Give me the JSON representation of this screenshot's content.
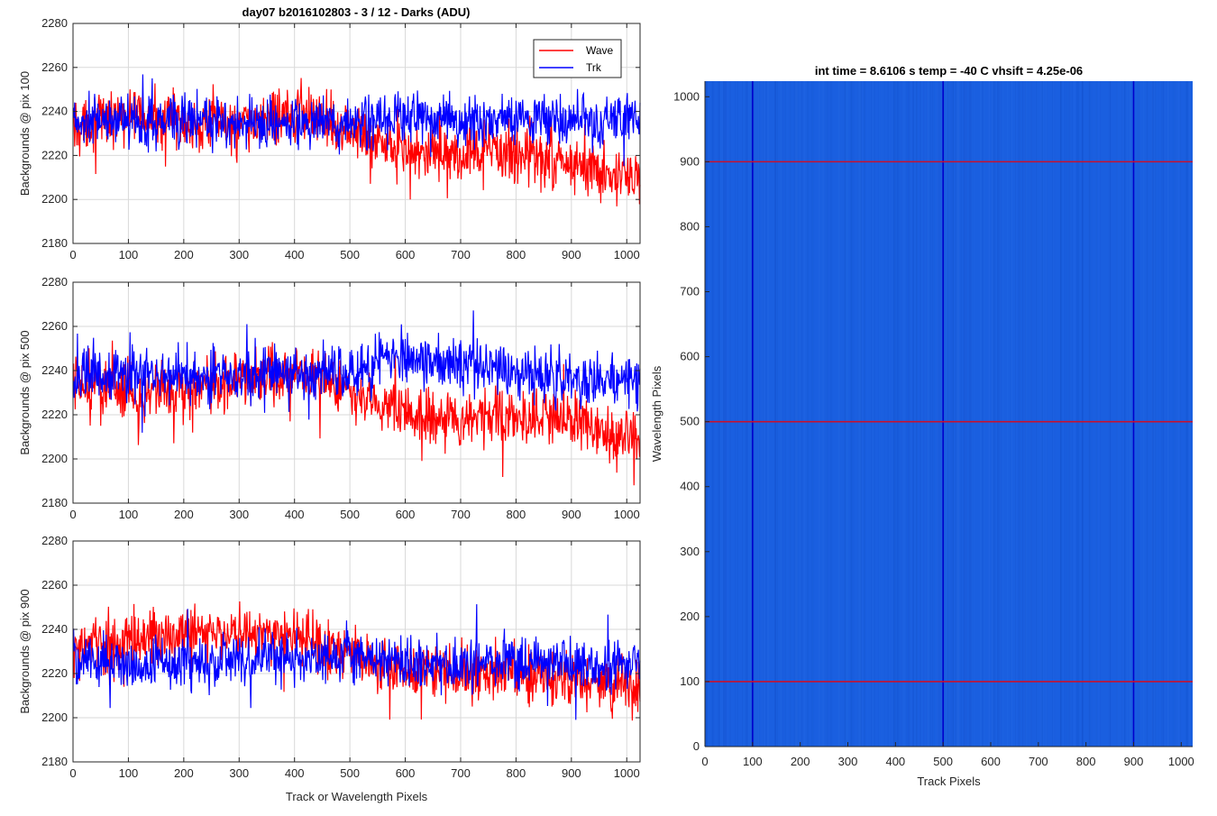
{
  "figure_title": "day07 b2016102803 - 3 / 12 - Darks (ADU)",
  "legend": {
    "placement": "top-right",
    "entries": [
      {
        "label": "Wave",
        "color": "#ff0000"
      },
      {
        "label": "Trk",
        "color": "#0000ff"
      }
    ]
  },
  "colors": {
    "wave": "#ff0000",
    "trk": "#0000ff",
    "heatmap_bg": "#1a5fe0",
    "marker_red": "#c8102e",
    "marker_blue": "#0000cc",
    "grid": "#d9d9d9"
  },
  "chart_data": [
    {
      "type": "line",
      "ylabel": "Backgrounds @ pix 100",
      "xlabel": "",
      "xlim": [
        0,
        1024
      ],
      "ylim": [
        2180,
        2280
      ],
      "xticks": [
        0,
        100,
        200,
        300,
        400,
        500,
        600,
        700,
        800,
        900,
        1000
      ],
      "yticks": [
        2180,
        2200,
        2220,
        2240,
        2260,
        2280
      ],
      "grid": true,
      "series": [
        {
          "name": "Wave",
          "color": "#ff0000",
          "x": [
            0,
            64,
            128,
            192,
            256,
            320,
            384,
            448,
            512,
            576,
            640,
            704,
            768,
            832,
            896,
            960,
            1024
          ],
          "y": [
            2233,
            2237,
            2238,
            2236,
            2235,
            2233,
            2240,
            2238,
            2230,
            2224,
            2220,
            2219,
            2222,
            2220,
            2217,
            2212,
            2207
          ]
        },
        {
          "name": "Trk",
          "color": "#0000ff",
          "x": [
            0,
            64,
            128,
            192,
            256,
            320,
            384,
            448,
            512,
            576,
            640,
            704,
            768,
            832,
            896,
            960,
            1024
          ],
          "y": [
            2234,
            2236,
            2235,
            2236,
            2235,
            2234,
            2235,
            2236,
            2234,
            2237,
            2238,
            2235,
            2238,
            2236,
            2236,
            2236,
            2237
          ]
        }
      ]
    },
    {
      "type": "line",
      "ylabel": "Backgrounds @ pix 500",
      "xlabel": "",
      "xlim": [
        0,
        1024
      ],
      "ylim": [
        2180,
        2280
      ],
      "xticks": [
        0,
        100,
        200,
        300,
        400,
        500,
        600,
        700,
        800,
        900,
        1000
      ],
      "yticks": [
        2180,
        2200,
        2220,
        2240,
        2260,
        2280
      ],
      "grid": true,
      "series": [
        {
          "name": "Wave",
          "color": "#ff0000",
          "x": [
            0,
            64,
            128,
            192,
            256,
            320,
            384,
            448,
            512,
            576,
            640,
            704,
            768,
            832,
            896,
            960,
            1024
          ],
          "y": [
            2232,
            2232,
            2230,
            2232,
            2234,
            2236,
            2237,
            2236,
            2228,
            2222,
            2219,
            2218,
            2219,
            2218,
            2217,
            2212,
            2208
          ]
        },
        {
          "name": "Trk",
          "color": "#0000ff",
          "x": [
            0,
            64,
            128,
            192,
            256,
            320,
            384,
            448,
            512,
            576,
            640,
            704,
            768,
            832,
            896,
            960,
            1024
          ],
          "y": [
            2236,
            2238,
            2238,
            2238,
            2238,
            2238,
            2240,
            2240,
            2240,
            2245,
            2244,
            2242,
            2240,
            2238,
            2237,
            2236,
            2233
          ]
        }
      ]
    },
    {
      "type": "line",
      "ylabel": "Backgrounds @ pix 900",
      "xlabel": "Track or Wavelength Pixels",
      "xlim": [
        0,
        1024
      ],
      "ylim": [
        2180,
        2280
      ],
      "xticks": [
        0,
        100,
        200,
        300,
        400,
        500,
        600,
        700,
        800,
        900,
        1000
      ],
      "yticks": [
        2180,
        2200,
        2220,
        2240,
        2260,
        2280
      ],
      "grid": true,
      "series": [
        {
          "name": "Wave",
          "color": "#ff0000",
          "x": [
            0,
            64,
            128,
            192,
            256,
            320,
            384,
            448,
            512,
            576,
            640,
            704,
            768,
            832,
            896,
            960,
            1024
          ],
          "y": [
            2230,
            2234,
            2236,
            2238,
            2238,
            2238,
            2238,
            2234,
            2228,
            2222,
            2220,
            2220,
            2221,
            2219,
            2218,
            2216,
            2214
          ]
        },
        {
          "name": "Trk",
          "color": "#0000ff",
          "x": [
            0,
            64,
            128,
            192,
            256,
            320,
            384,
            448,
            512,
            576,
            640,
            704,
            768,
            832,
            896,
            960,
            1024
          ],
          "y": [
            2226,
            2225,
            2224,
            2224,
            2224,
            2226,
            2228,
            2228,
            2227,
            2225,
            2224,
            2224,
            2226,
            2225,
            2224,
            2223,
            2224
          ]
        }
      ]
    },
    {
      "type": "heatmap",
      "title": "int time = 8.6106 s    temp = -40 C    vhsift = 4.25e-06",
      "xlabel": "Track Pixels",
      "ylabel": "Wavelength Pixels",
      "xlim": [
        0,
        1024
      ],
      "ylim": [
        0,
        1024
      ],
      "xticks": [
        0,
        100,
        200,
        300,
        400,
        500,
        600,
        700,
        800,
        900,
        1000
      ],
      "yticks": [
        0,
        100,
        200,
        300,
        400,
        500,
        600,
        700,
        800,
        900,
        1000
      ],
      "grid": false,
      "vertical_markers": [
        100,
        500,
        900
      ],
      "horizontal_markers": [
        100,
        500,
        900
      ]
    }
  ]
}
